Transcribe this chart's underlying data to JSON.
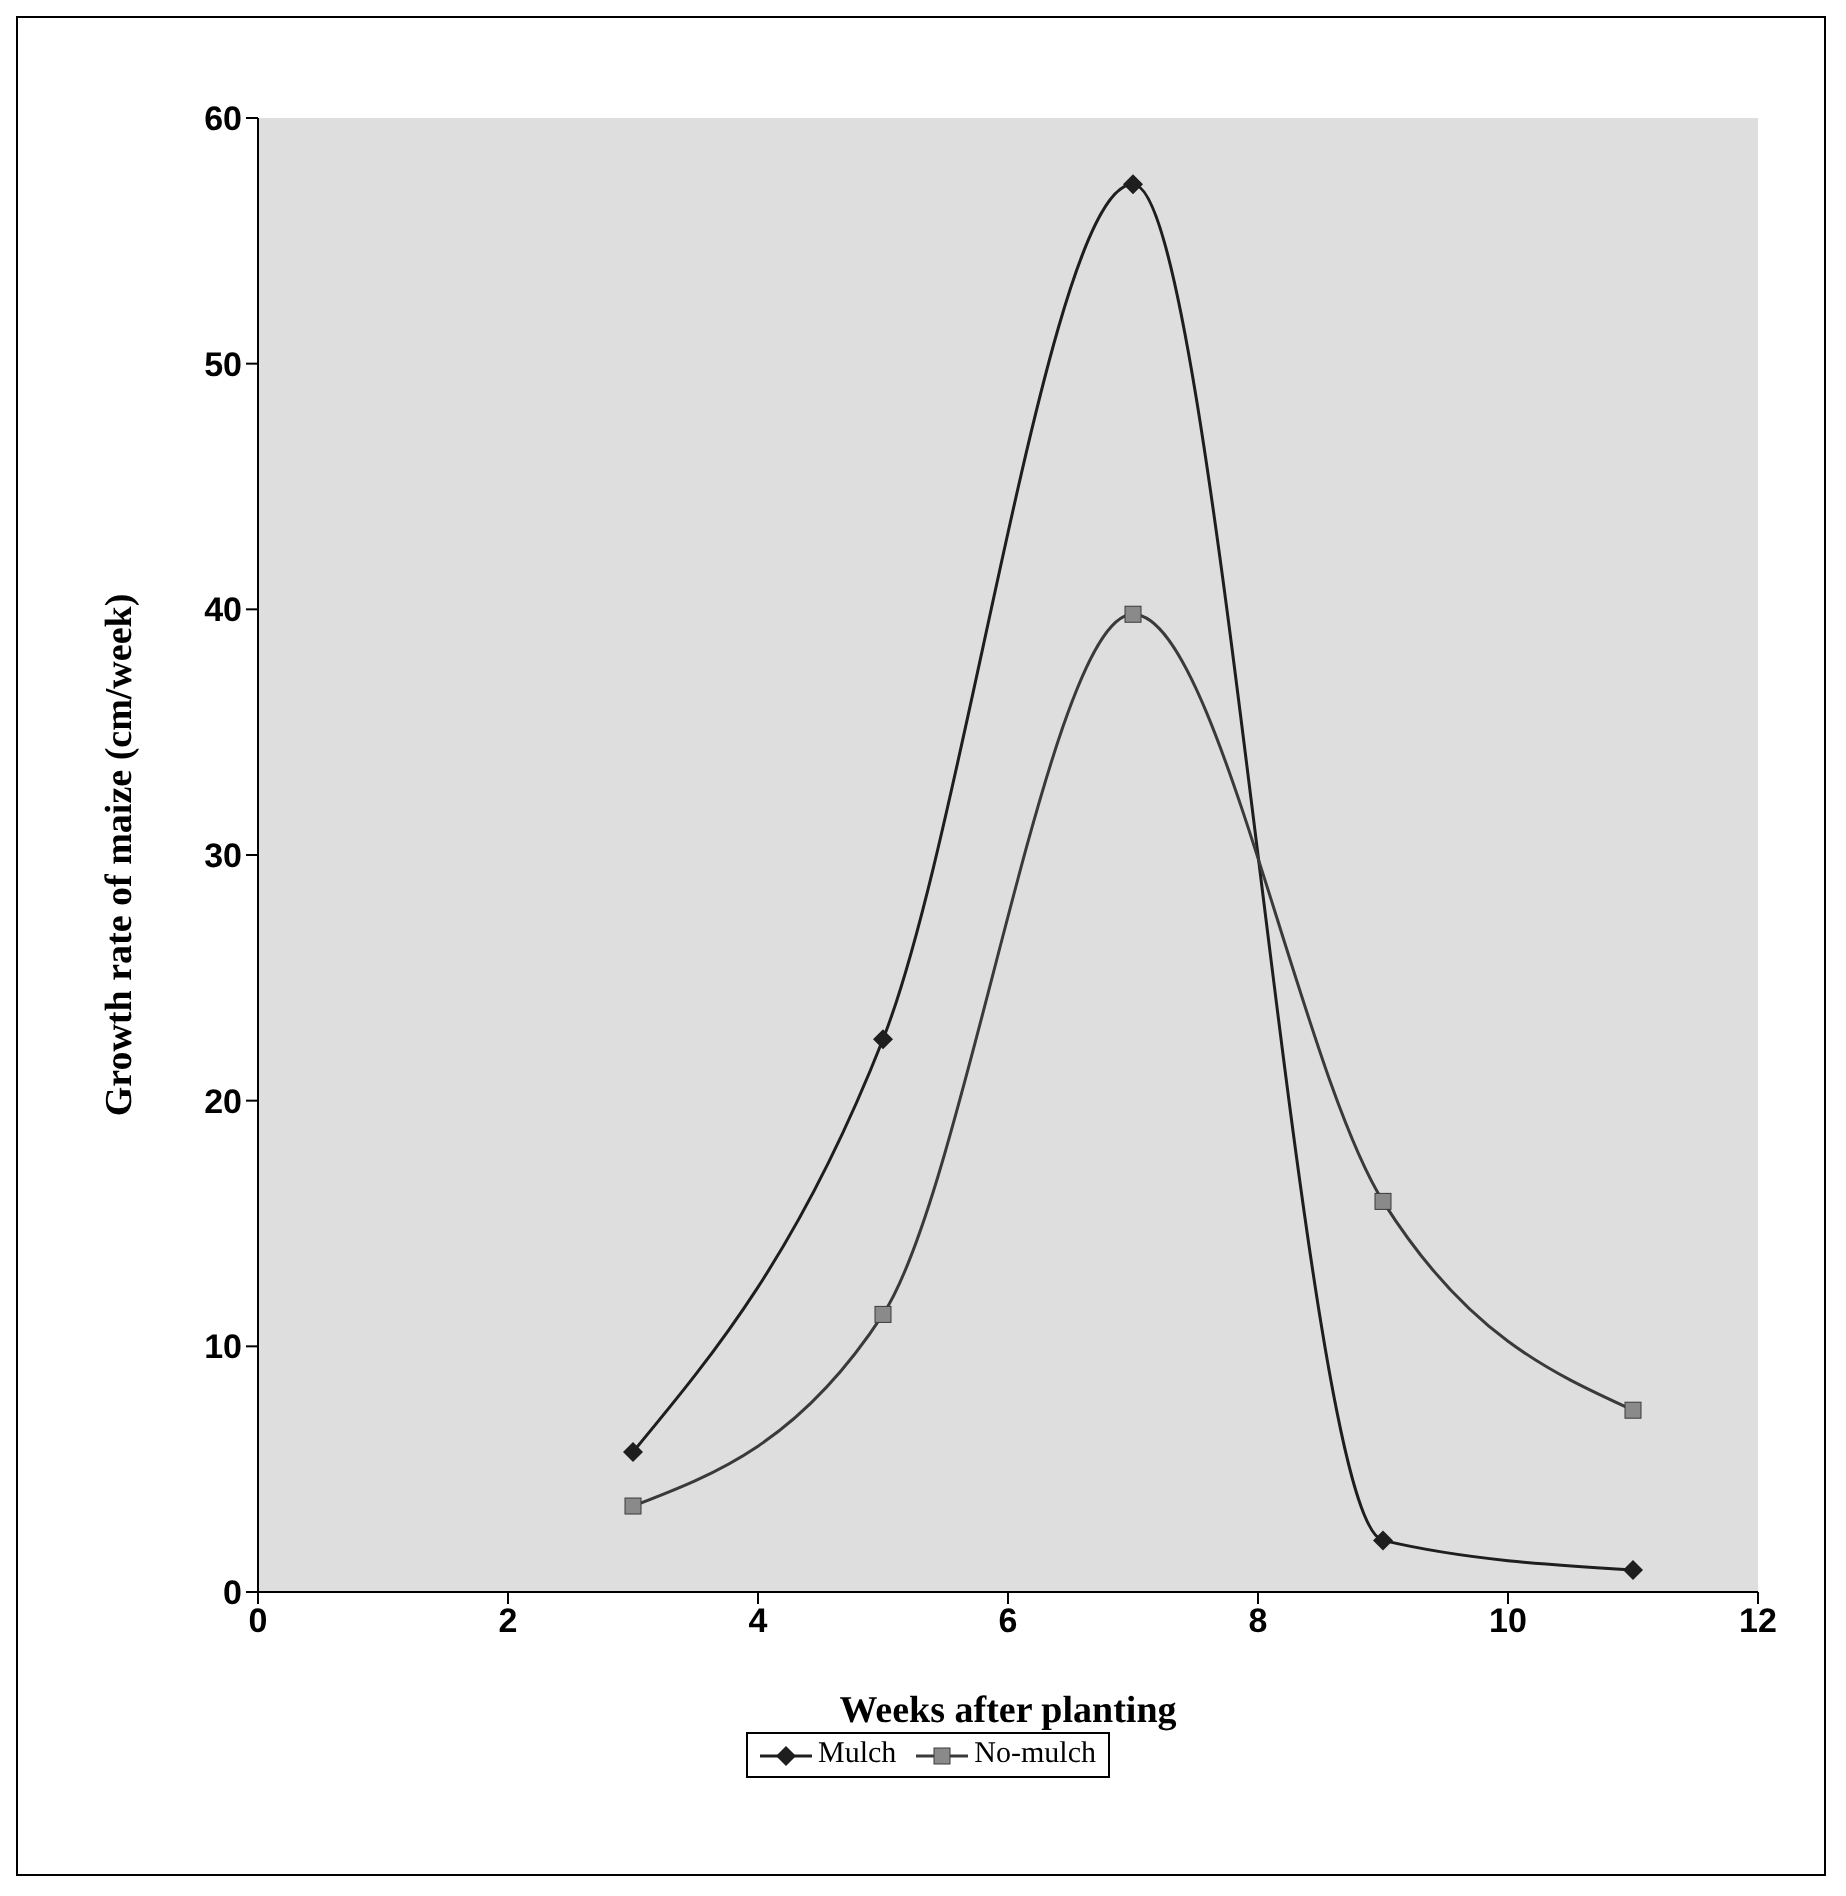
{
  "chart_data": {
    "type": "line",
    "xlabel": "Weeks after planting",
    "ylabel": "Growth rate of maize (cm/week)",
    "x": [
      3,
      5,
      7,
      9,
      11
    ],
    "series": [
      {
        "name": "Mulch",
        "color": "#1e1e1e",
        "marker": "diamond",
        "values": [
          5.7,
          22.5,
          57.3,
          2.1,
          0.9
        ]
      },
      {
        "name": "No-mulch",
        "color": "#3a3a3a",
        "marker": "square",
        "values": [
          3.5,
          11.3,
          39.8,
          15.9,
          7.4
        ]
      }
    ],
    "xlim": [
      0,
      12
    ],
    "xticks": [
      0,
      2,
      4,
      6,
      8,
      10,
      12
    ],
    "ylim": [
      0,
      60
    ],
    "yticks": [
      0,
      10,
      20,
      30,
      40,
      50,
      60
    ],
    "grid": false,
    "legend": "bottom",
    "line_style": "solid"
  }
}
